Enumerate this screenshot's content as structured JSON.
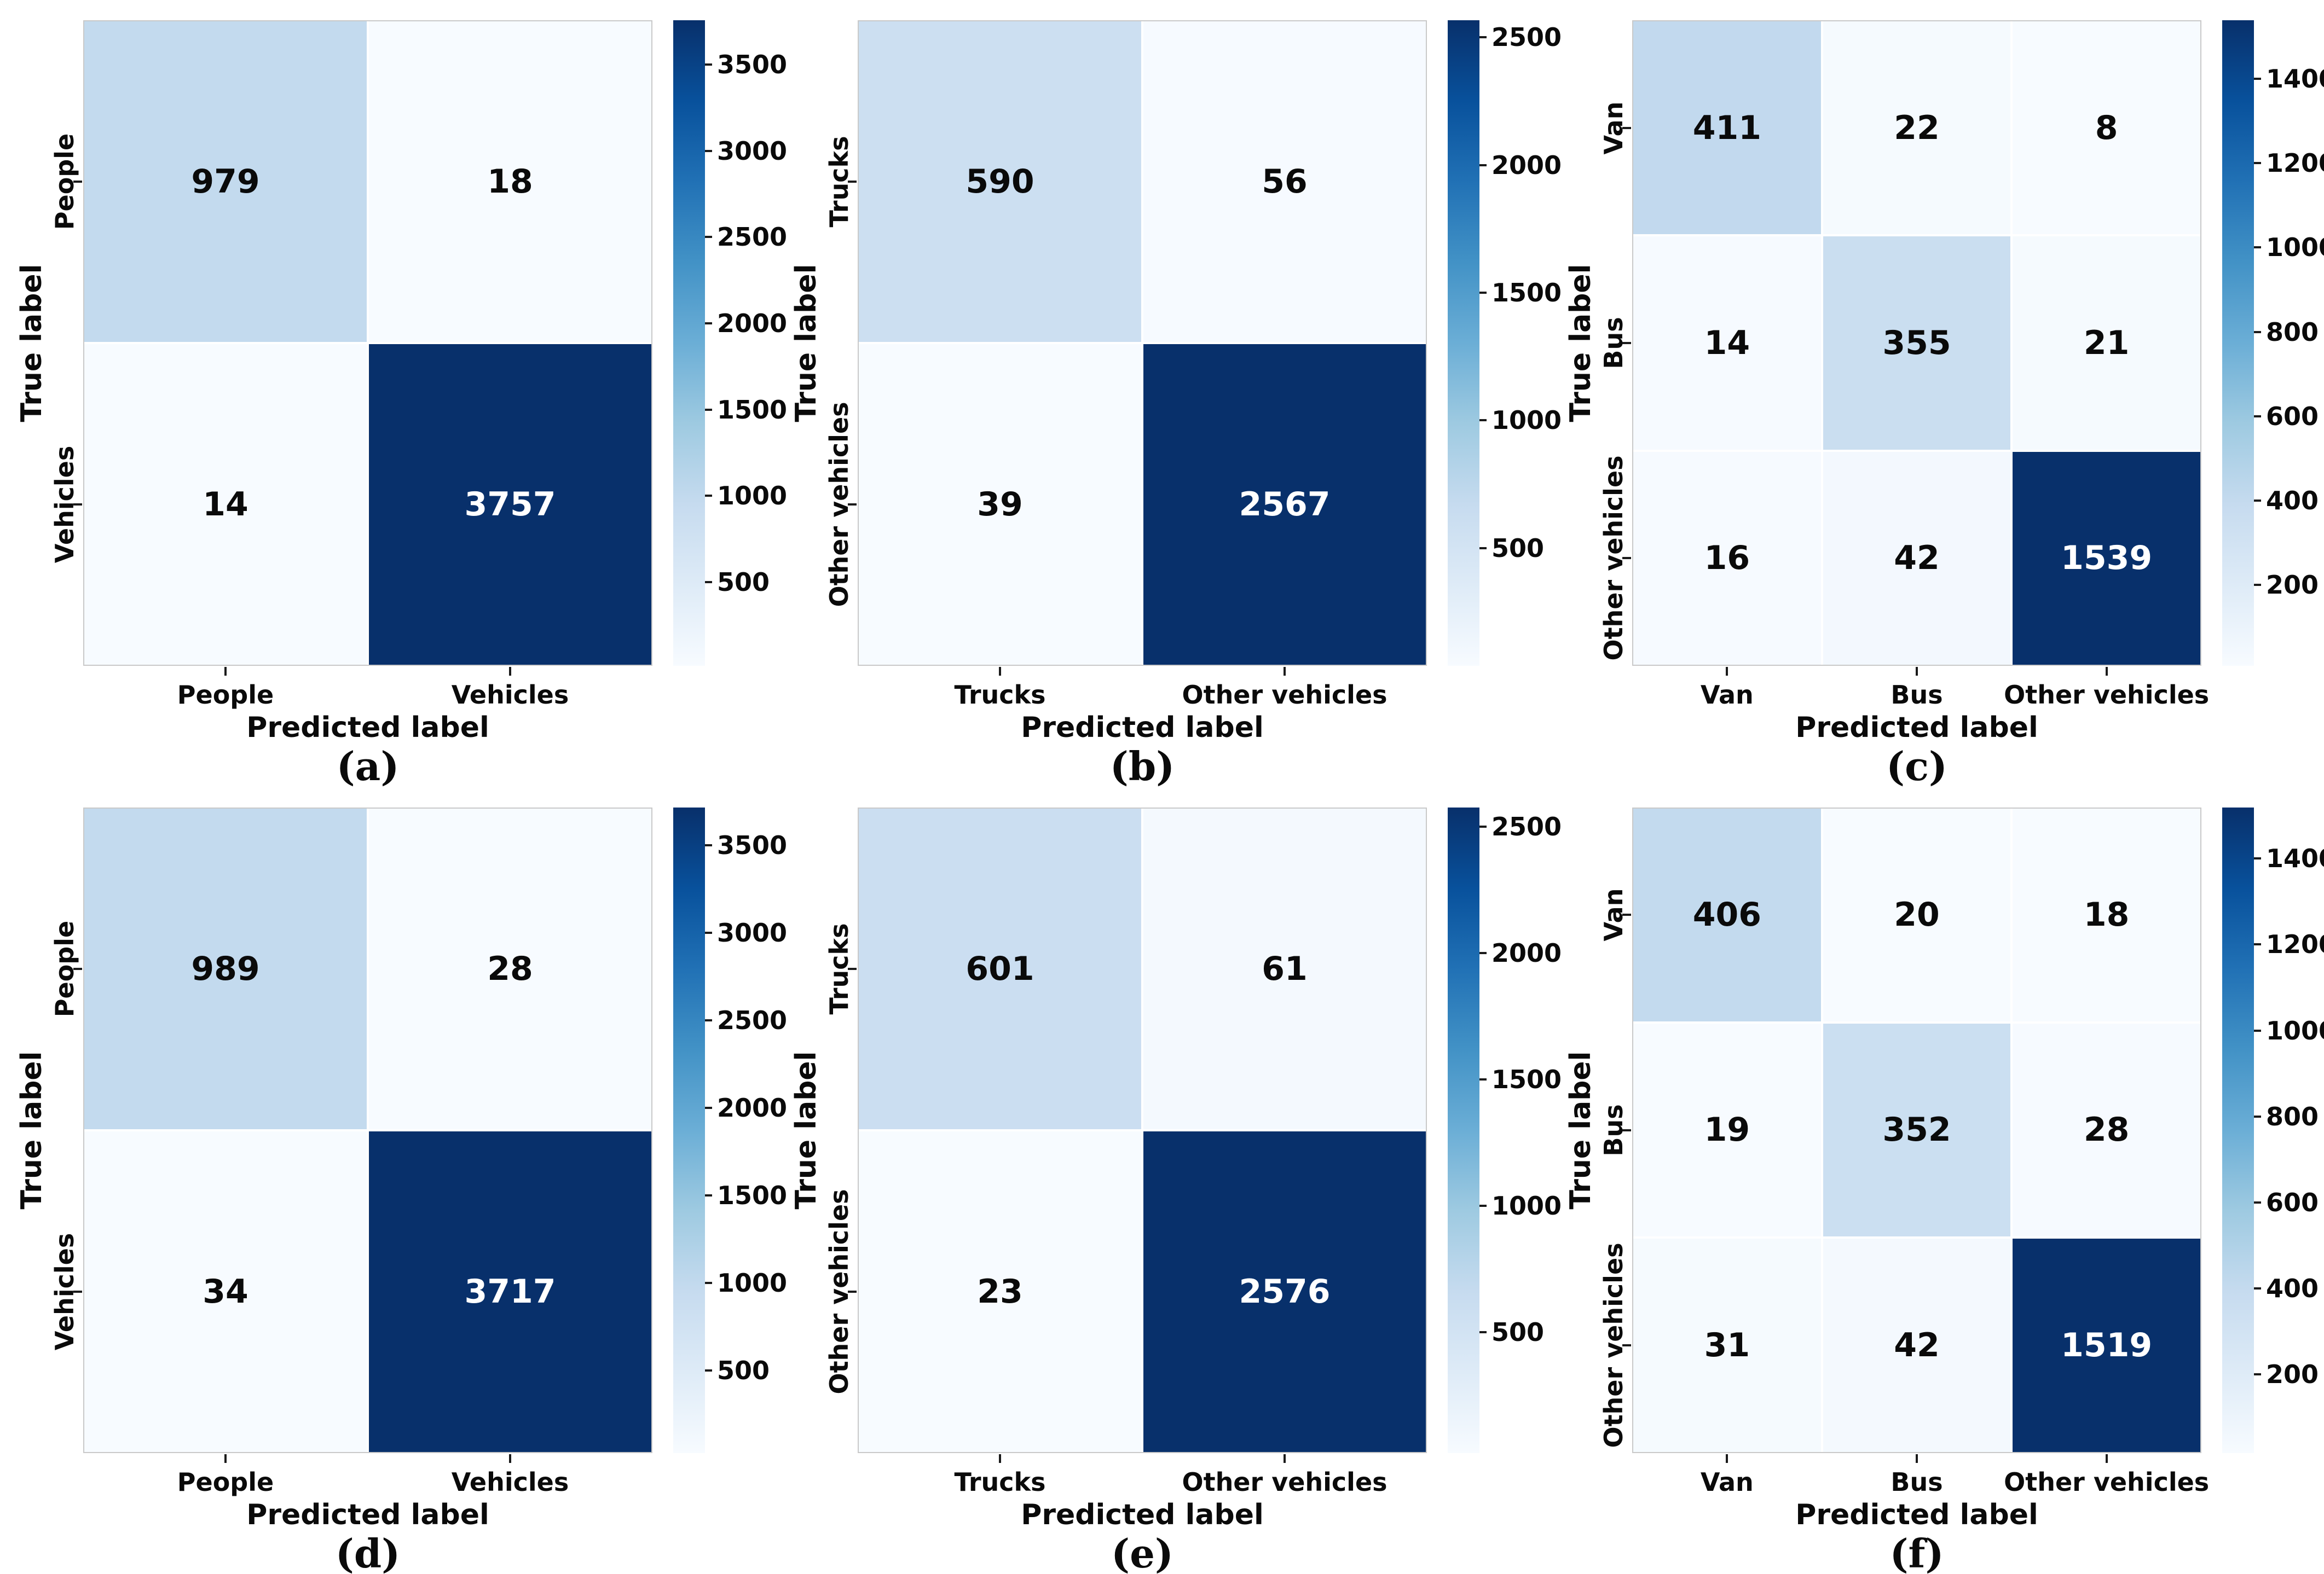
{
  "figure": {
    "background": "#ffffff",
    "text_color": "#0a0a0a",
    "cell_text_dark": "#0a0a0a",
    "cell_text_light": "#ffffff"
  },
  "axis_labels": {
    "x": "Predicted label",
    "y": "True label"
  },
  "colormap": {
    "name": "Blues",
    "stops": [
      "#f7fbff",
      "#deebf7",
      "#c6dbef",
      "#9ecae1",
      "#6baed6",
      "#4292c6",
      "#2171b5",
      "#08519c",
      "#08306b"
    ]
  },
  "chart_data": [
    {
      "type": "heatmap",
      "title": "",
      "caption": "(a)",
      "xlabel": "Predicted label",
      "ylabel": "True label",
      "categories": [
        "People",
        "Vehicles"
      ],
      "rows": [
        [
          979,
          18
        ],
        [
          14,
          3757
        ]
      ],
      "vmin": 14,
      "vmax": 3757,
      "colorbar_ticks": [
        500,
        1000,
        1500,
        2000,
        2500,
        3000,
        3500
      ],
      "legend_position": "right-colorbar",
      "grid": false
    },
    {
      "type": "heatmap",
      "title": "",
      "caption": "(b)",
      "xlabel": "Predicted label",
      "ylabel": "True label",
      "categories": [
        "Trucks",
        "Other vehicles"
      ],
      "rows": [
        [
          590,
          56
        ],
        [
          39,
          2567
        ]
      ],
      "vmin": 39,
      "vmax": 2567,
      "colorbar_ticks": [
        500,
        1000,
        1500,
        2000,
        2500
      ],
      "legend_position": "right-colorbar",
      "grid": false
    },
    {
      "type": "heatmap",
      "title": "",
      "caption": "(c)",
      "xlabel": "Predicted label",
      "ylabel": "True label",
      "categories": [
        "Van",
        "Bus",
        "Other vehicles"
      ],
      "rows": [
        [
          411,
          22,
          8
        ],
        [
          14,
          355,
          21
        ],
        [
          16,
          42,
          1539
        ]
      ],
      "vmin": 8,
      "vmax": 1539,
      "colorbar_ticks": [
        200,
        400,
        600,
        800,
        1000,
        1200,
        1400
      ],
      "legend_position": "right-colorbar",
      "grid": false
    },
    {
      "type": "heatmap",
      "title": "",
      "caption": "(d)",
      "xlabel": "Predicted label",
      "ylabel": "True label",
      "categories": [
        "People",
        "Vehicles"
      ],
      "rows": [
        [
          989,
          28
        ],
        [
          34,
          3717
        ]
      ],
      "vmin": 28,
      "vmax": 3717,
      "colorbar_ticks": [
        500,
        1000,
        1500,
        2000,
        2500,
        3000,
        3500
      ],
      "legend_position": "right-colorbar",
      "grid": false
    },
    {
      "type": "heatmap",
      "title": "",
      "caption": "(e)",
      "xlabel": "Predicted label",
      "ylabel": "True label",
      "categories": [
        "Trucks",
        "Other vehicles"
      ],
      "rows": [
        [
          601,
          61
        ],
        [
          23,
          2576
        ]
      ],
      "vmin": 23,
      "vmax": 2576,
      "colorbar_ticks": [
        500,
        1000,
        1500,
        2000,
        2500
      ],
      "legend_position": "right-colorbar",
      "grid": false
    },
    {
      "type": "heatmap",
      "title": "",
      "caption": "(f)",
      "xlabel": "Predicted label",
      "ylabel": "True label",
      "categories": [
        "Van",
        "Bus",
        "Other vehicles"
      ],
      "rows": [
        [
          406,
          20,
          18
        ],
        [
          19,
          352,
          28
        ],
        [
          31,
          42,
          1519
        ]
      ],
      "vmin": 18,
      "vmax": 1519,
      "colorbar_ticks": [
        200,
        400,
        600,
        800,
        1000,
        1200,
        1400
      ],
      "legend_position": "right-colorbar",
      "grid": false
    }
  ]
}
